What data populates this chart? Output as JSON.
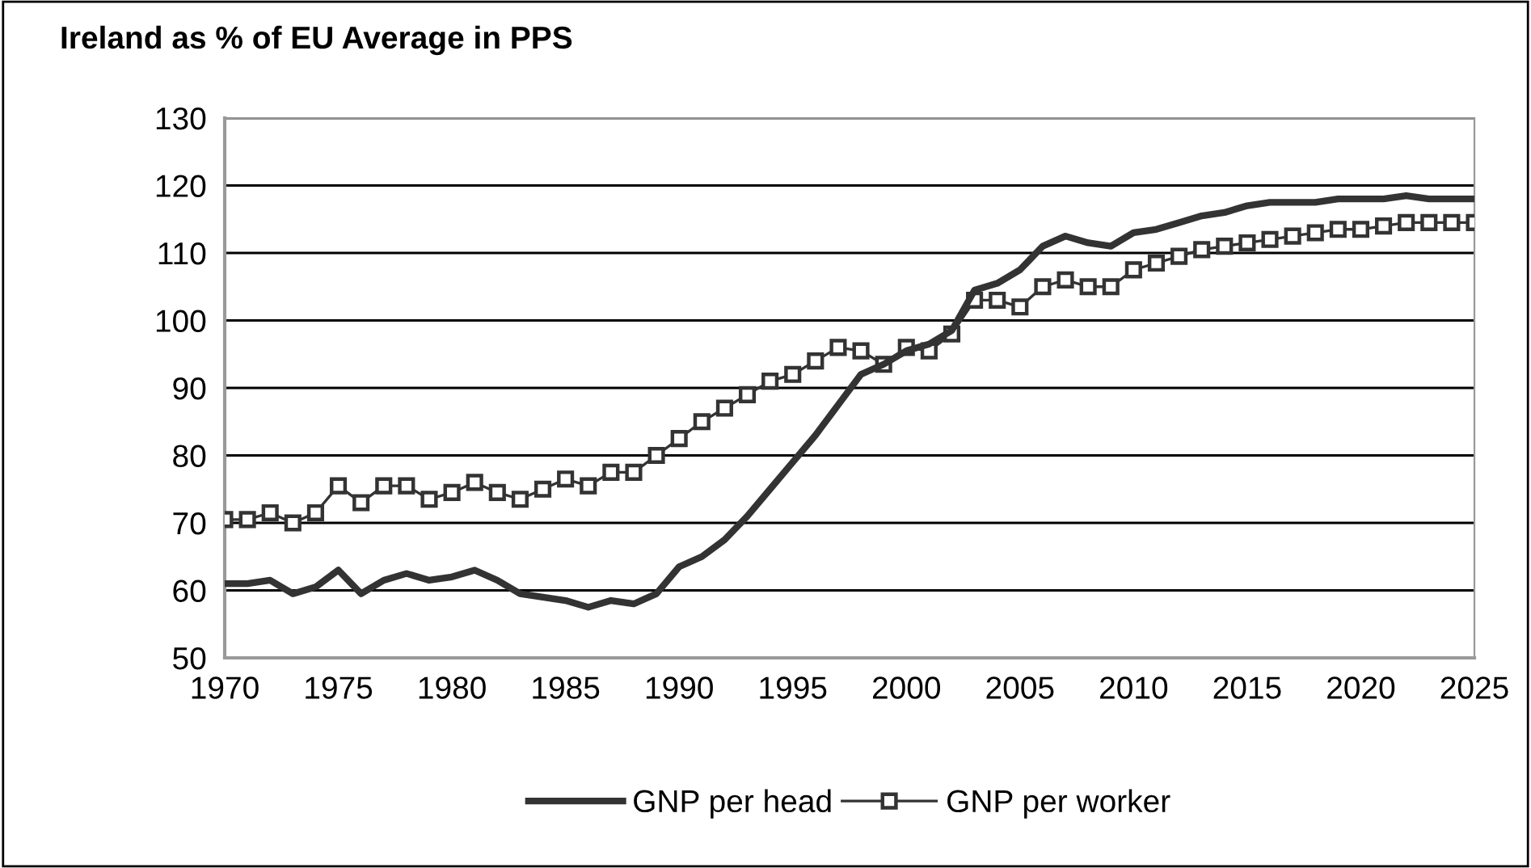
{
  "chart_data": {
    "type": "line",
    "title": "Ireland as % of EU Average in PPS",
    "x": [
      1970,
      1971,
      1972,
      1973,
      1974,
      1975,
      1976,
      1977,
      1978,
      1979,
      1980,
      1981,
      1982,
      1983,
      1984,
      1985,
      1986,
      1987,
      1988,
      1989,
      1990,
      1991,
      1992,
      1993,
      1994,
      1995,
      1996,
      1997,
      1998,
      1999,
      2000,
      2001,
      2002,
      2003,
      2004,
      2005,
      2006,
      2007,
      2008,
      2009,
      2010,
      2011,
      2012,
      2013,
      2014,
      2015,
      2016,
      2017,
      2018,
      2019,
      2020,
      2021,
      2022,
      2023,
      2024,
      2025
    ],
    "series": [
      {
        "name": "GNP per head",
        "color": "#333333",
        "marker": "none",
        "values": [
          61,
          61,
          61.5,
          59.5,
          60.5,
          63,
          59.5,
          61.5,
          62.5,
          61.5,
          62,
          63,
          61.5,
          59.5,
          59,
          58.5,
          57.5,
          58.5,
          58,
          59.5,
          63.5,
          65,
          67.5,
          71,
          75,
          79,
          83,
          87.5,
          92,
          93.5,
          95.5,
          96.5,
          98.5,
          104.5,
          105.5,
          107.5,
          111,
          112.5,
          111.5,
          111,
          113,
          113.5,
          114.5,
          115.5,
          116,
          117,
          117.5,
          117.5,
          117.5,
          118,
          118,
          118,
          118.5,
          118,
          118,
          118
        ]
      },
      {
        "name": "GNP per worker",
        "color": "#333333",
        "marker": "square",
        "values": [
          70.5,
          70.5,
          71.5,
          70,
          71.5,
          75.5,
          73,
          75.5,
          75.5,
          73.5,
          74.5,
          76,
          74.5,
          73.5,
          75,
          76.5,
          75.5,
          77.5,
          77.5,
          80,
          82.5,
          85,
          87,
          89,
          91,
          92,
          94,
          96,
          95.5,
          93.5,
          96,
          95.5,
          98,
          103,
          103,
          102,
          105,
          106,
          105,
          105,
          107.5,
          108.5,
          109.5,
          110.5,
          111,
          111.5,
          112,
          112.5,
          113,
          113.5,
          113.5,
          114,
          114.5,
          114.5,
          114.5,
          114.5
        ]
      }
    ],
    "xlim": [
      1970,
      2025
    ],
    "xticks": [
      1970,
      1975,
      1980,
      1985,
      1990,
      1995,
      2000,
      2005,
      2010,
      2015,
      2020,
      2025
    ],
    "ylim": [
      50,
      130
    ],
    "yticks": [
      50,
      60,
      70,
      80,
      90,
      100,
      110,
      120,
      130
    ],
    "grid": "y",
    "legend": "bottom"
  }
}
